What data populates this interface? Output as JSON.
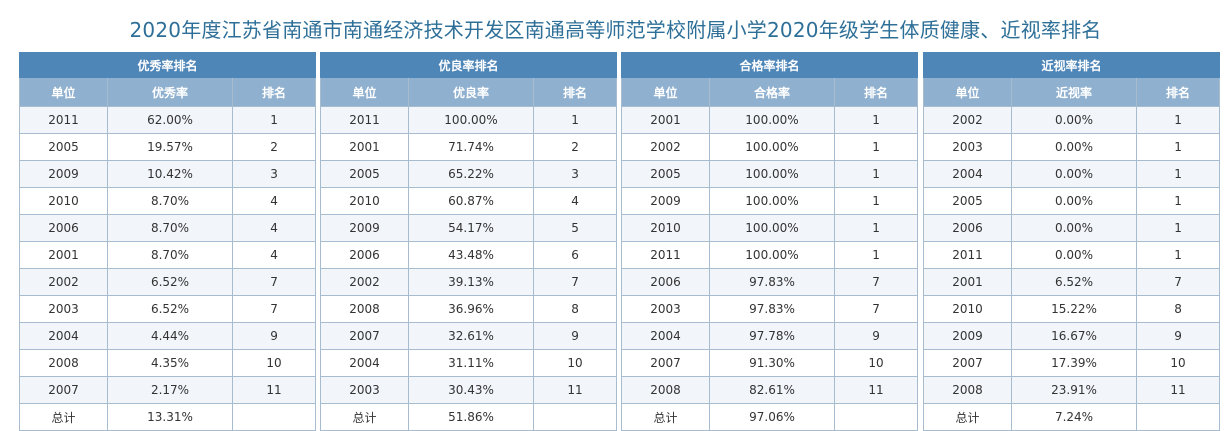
{
  "title": "2020年度江苏省南通市南通经济技术开发区南通高等师范学校附属小学2020年级学生体质健康、近视率排名",
  "tables": [
    {
      "heading": "优秀率排名",
      "columns": [
        "单位",
        "优秀率",
        "排名"
      ],
      "rows": [
        [
          "2011",
          "62.00%",
          "1"
        ],
        [
          "2005",
          "19.57%",
          "2"
        ],
        [
          "2009",
          "10.42%",
          "3"
        ],
        [
          "2010",
          "8.70%",
          "4"
        ],
        [
          "2006",
          "8.70%",
          "4"
        ],
        [
          "2001",
          "8.70%",
          "4"
        ],
        [
          "2002",
          "6.52%",
          "7"
        ],
        [
          "2003",
          "6.52%",
          "7"
        ],
        [
          "2004",
          "4.44%",
          "9"
        ],
        [
          "2008",
          "4.35%",
          "10"
        ],
        [
          "2007",
          "2.17%",
          "11"
        ]
      ],
      "total": [
        "总计",
        "13.31%",
        ""
      ]
    },
    {
      "heading": "优良率排名",
      "columns": [
        "单位",
        "优良率",
        "排名"
      ],
      "rows": [
        [
          "2011",
          "100.00%",
          "1"
        ],
        [
          "2001",
          "71.74%",
          "2"
        ],
        [
          "2005",
          "65.22%",
          "3"
        ],
        [
          "2010",
          "60.87%",
          "4"
        ],
        [
          "2009",
          "54.17%",
          "5"
        ],
        [
          "2006",
          "43.48%",
          "6"
        ],
        [
          "2002",
          "39.13%",
          "7"
        ],
        [
          "2008",
          "36.96%",
          "8"
        ],
        [
          "2007",
          "32.61%",
          "9"
        ],
        [
          "2004",
          "31.11%",
          "10"
        ],
        [
          "2003",
          "30.43%",
          "11"
        ]
      ],
      "total": [
        "总计",
        "51.86%",
        ""
      ]
    },
    {
      "heading": "合格率排名",
      "columns": [
        "单位",
        "合格率",
        "排名"
      ],
      "rows": [
        [
          "2001",
          "100.00%",
          "1"
        ],
        [
          "2002",
          "100.00%",
          "1"
        ],
        [
          "2005",
          "100.00%",
          "1"
        ],
        [
          "2009",
          "100.00%",
          "1"
        ],
        [
          "2010",
          "100.00%",
          "1"
        ],
        [
          "2011",
          "100.00%",
          "1"
        ],
        [
          "2006",
          "97.83%",
          "7"
        ],
        [
          "2003",
          "97.83%",
          "7"
        ],
        [
          "2004",
          "97.78%",
          "9"
        ],
        [
          "2007",
          "91.30%",
          "10"
        ],
        [
          "2008",
          "82.61%",
          "11"
        ]
      ],
      "total": [
        "总计",
        "97.06%",
        ""
      ]
    },
    {
      "heading": "近视率排名",
      "columns": [
        "单位",
        "近视率",
        "排名"
      ],
      "rows": [
        [
          "2002",
          "0.00%",
          "1"
        ],
        [
          "2003",
          "0.00%",
          "1"
        ],
        [
          "2004",
          "0.00%",
          "1"
        ],
        [
          "2005",
          "0.00%",
          "1"
        ],
        [
          "2006",
          "0.00%",
          "1"
        ],
        [
          "2011",
          "0.00%",
          "1"
        ],
        [
          "2001",
          "6.52%",
          "7"
        ],
        [
          "2010",
          "15.22%",
          "8"
        ],
        [
          "2009",
          "16.67%",
          "9"
        ],
        [
          "2007",
          "17.39%",
          "10"
        ],
        [
          "2008",
          "23.91%",
          "11"
        ]
      ],
      "total": [
        "总计",
        "7.24%",
        ""
      ]
    }
  ]
}
